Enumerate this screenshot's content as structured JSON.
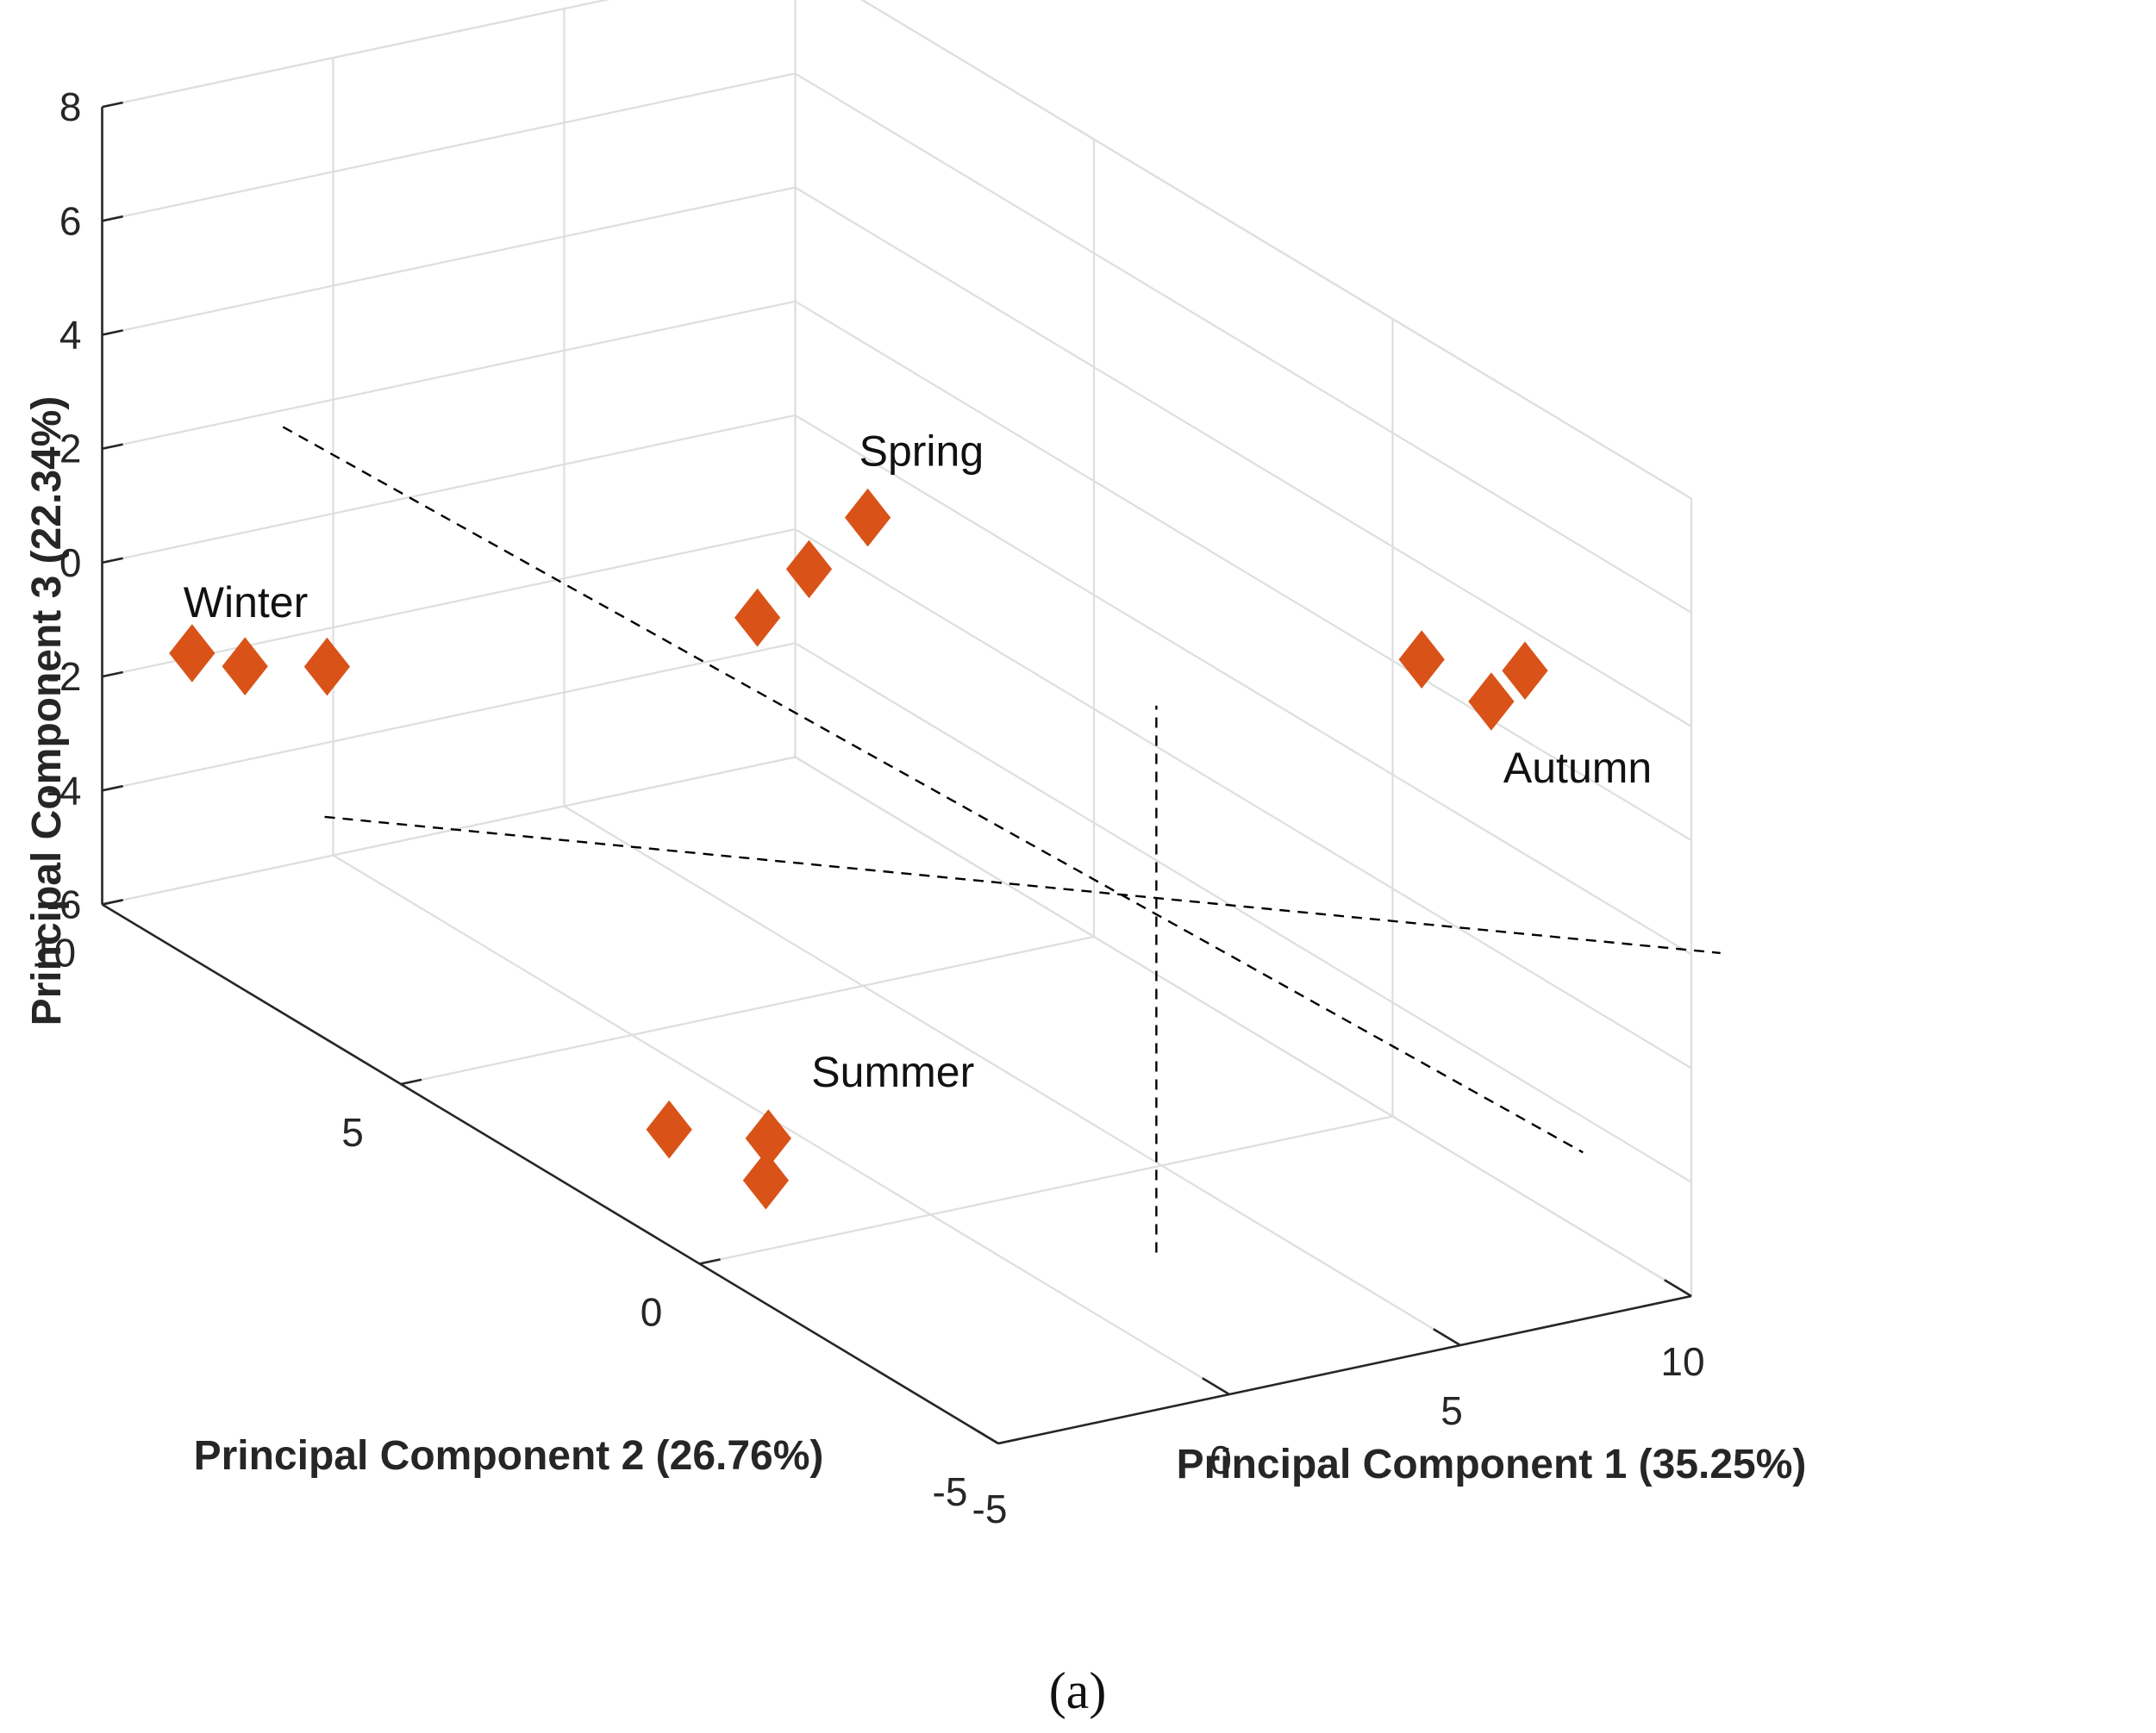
{
  "chart_data": {
    "type": "scatter3d",
    "title": "",
    "caption": "(a)",
    "axes": {
      "x": {
        "label": "Principal Component 1 (35.25%)",
        "ticks": [
          "-5",
          "0",
          "5",
          "10"
        ],
        "range": [
          -5,
          10
        ]
      },
      "y": {
        "label": "Principal Component 2 (26.76%)",
        "ticks": [
          "-5",
          "0",
          "5",
          "10"
        ],
        "range": [
          -5,
          10
        ]
      },
      "z": {
        "label": "Principal Component 3 (22.34%)",
        "ticks": [
          "-6",
          "-4",
          "-2",
          "0",
          "2",
          "4",
          "6",
          "8"
        ],
        "range": [
          -6,
          8
        ]
      }
    },
    "grid": true,
    "marker": {
      "shape": "diamond",
      "color": "#D95319"
    },
    "guide_color": "#000000",
    "series": [
      {
        "name": "Spring",
        "points": [
          {
            "x": 2.2,
            "y": 4.6,
            "z": 1.2
          },
          {
            "x": 2.8,
            "y": 4.2,
            "z": 2.2
          },
          {
            "x": 4.2,
            "y": 4.3,
            "z": 2.8
          }
        ]
      },
      {
        "name": "Summer",
        "points": [
          {
            "x": -5.4,
            "y": 0.2,
            "z": -3.7
          },
          {
            "x": -4.6,
            "y": -0.8,
            "z": -4.1
          },
          {
            "x": -3.9,
            "y": -0.3,
            "z": -3.8
          }
        ]
      },
      {
        "name": "Winter",
        "points": [
          {
            "x": 1.6,
            "y": 13.6,
            "z": -5.0
          },
          {
            "x": 2.1,
            "y": 13.1,
            "z": -5.0
          },
          {
            "x": 3.1,
            "y": 12.5,
            "z": -4.8
          }
        ]
      },
      {
        "name": "Autumn",
        "points": [
          {
            "x": 10.5,
            "y": -0.1,
            "z": 2.0
          },
          {
            "x": 11.1,
            "y": -0.8,
            "z": 1.6
          },
          {
            "x": 11.7,
            "y": -0.9,
            "z": 2.1
          }
        ]
      }
    ]
  }
}
